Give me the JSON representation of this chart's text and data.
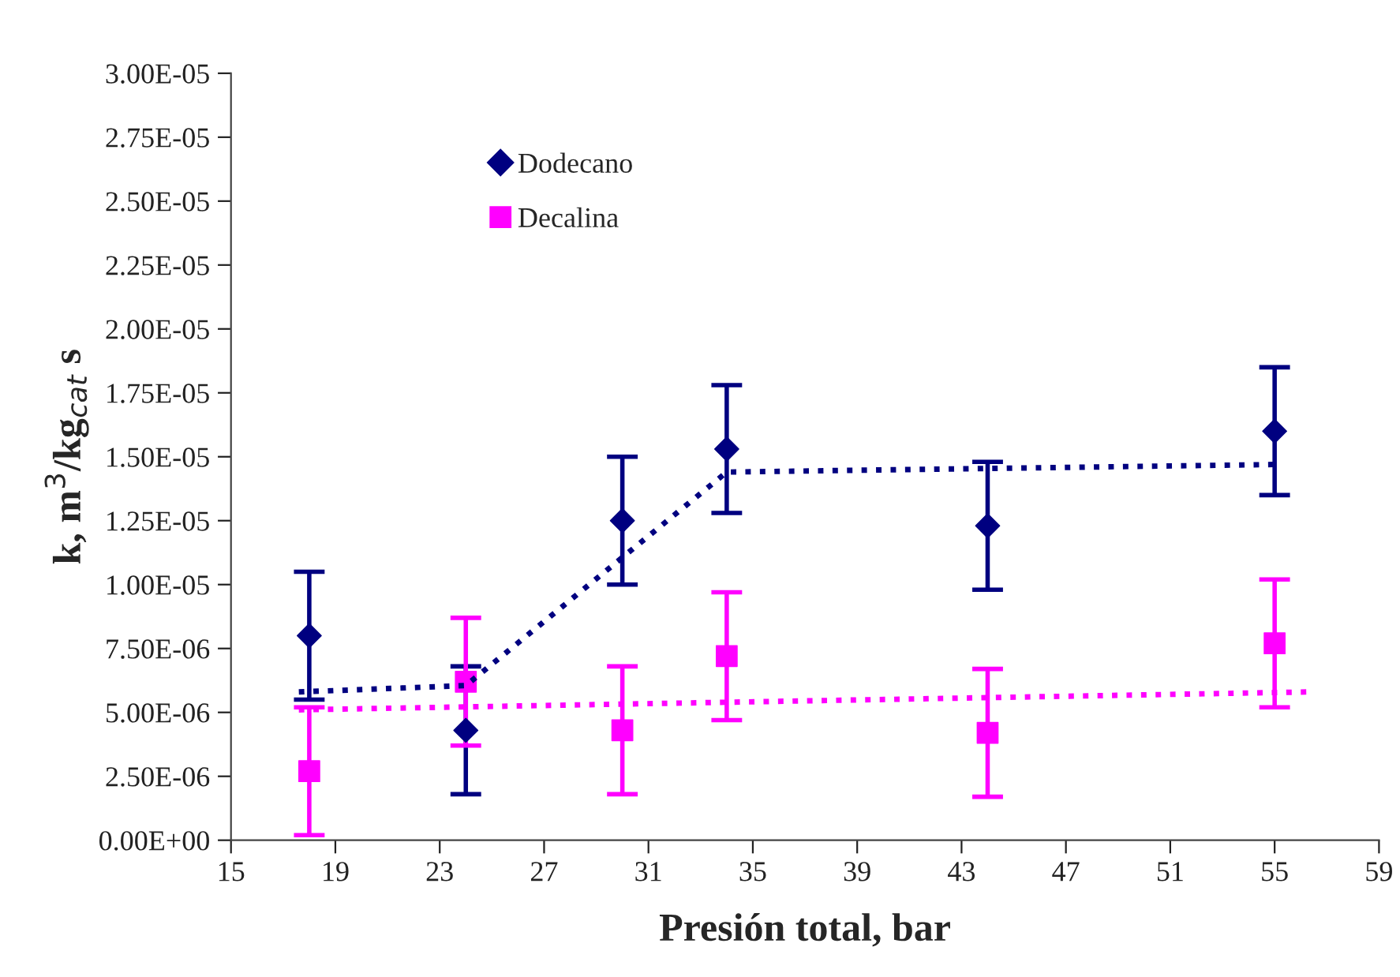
{
  "chart_data": {
    "type": "scatter",
    "xlabel": "Presión total, bar",
    "ylabel": "k, m$^{3}$/kg$_{cat}$ s",
    "x": [
      18,
      24,
      30,
      34,
      44,
      55
    ],
    "series": [
      {
        "name": "Dodecano",
        "color": "#000080",
        "marker": "diamond",
        "values": [
          8e-06,
          4.3e-06,
          1.25e-05,
          1.53e-05,
          1.23e-05,
          1.6e-05
        ],
        "errors": [
          2.5e-06,
          2.5e-06,
          2.5e-06,
          2.5e-06,
          2.5e-06,
          2.5e-06
        ]
      },
      {
        "name": "Decalina",
        "color": "#ff00ff",
        "marker": "square",
        "values": [
          2.7e-06,
          6.2e-06,
          4.3e-06,
          7.2e-06,
          4.2e-06,
          7.7e-06
        ],
        "errors": [
          2.5e-06,
          2.5e-06,
          2.5e-06,
          2.5e-06,
          2.5e-06,
          2.5e-06
        ]
      },
      {
        "type": "line",
        "color": "#000080",
        "line_style": "dotted",
        "marker": "none",
        "x": [
          17.6,
          24,
          34,
          55.2
        ],
        "values": [
          5.8e-06,
          6.05e-06,
          1.44e-05,
          1.47e-05
        ]
      },
      {
        "type": "line",
        "color": "#ff00ff",
        "line_style": "dotted",
        "marker": "none",
        "x": [
          17.6,
          56.3
        ],
        "values": [
          5.1e-06,
          5.8e-06
        ]
      }
    ],
    "xlim": [
      15,
      59
    ],
    "xticks": [
      15,
      19,
      23,
      27,
      31,
      35,
      39,
      43,
      47,
      51,
      55,
      59
    ],
    "ylim": [
      0,
      3e-05
    ],
    "yticks": [
      {
        "value": 0,
        "label": "0.00E+00"
      },
      {
        "value": 2.5e-06,
        "label": "2.50E-06"
      },
      {
        "value": 5e-06,
        "label": "5.00E-06"
      },
      {
        "value": 7.5e-06,
        "label": "7.50E-06"
      },
      {
        "value": 1e-05,
        "label": "1.00E-05"
      },
      {
        "value": 1.25e-05,
        "label": "1.25E-05"
      },
      {
        "value": 1.5e-05,
        "label": "1.50E-05"
      },
      {
        "value": 1.75e-05,
        "label": "1.75E-05"
      },
      {
        "value": 2e-05,
        "label": "2.00E-05"
      },
      {
        "value": 2.25e-05,
        "label": "2.25E-05"
      },
      {
        "value": 2.5e-05,
        "label": "2.50E-05"
      },
      {
        "value": 2.75e-05,
        "label": "2.75E-05"
      },
      {
        "value": 3e-05,
        "label": "3.00E-05"
      }
    ],
    "grid": false,
    "legend": "top left"
  }
}
